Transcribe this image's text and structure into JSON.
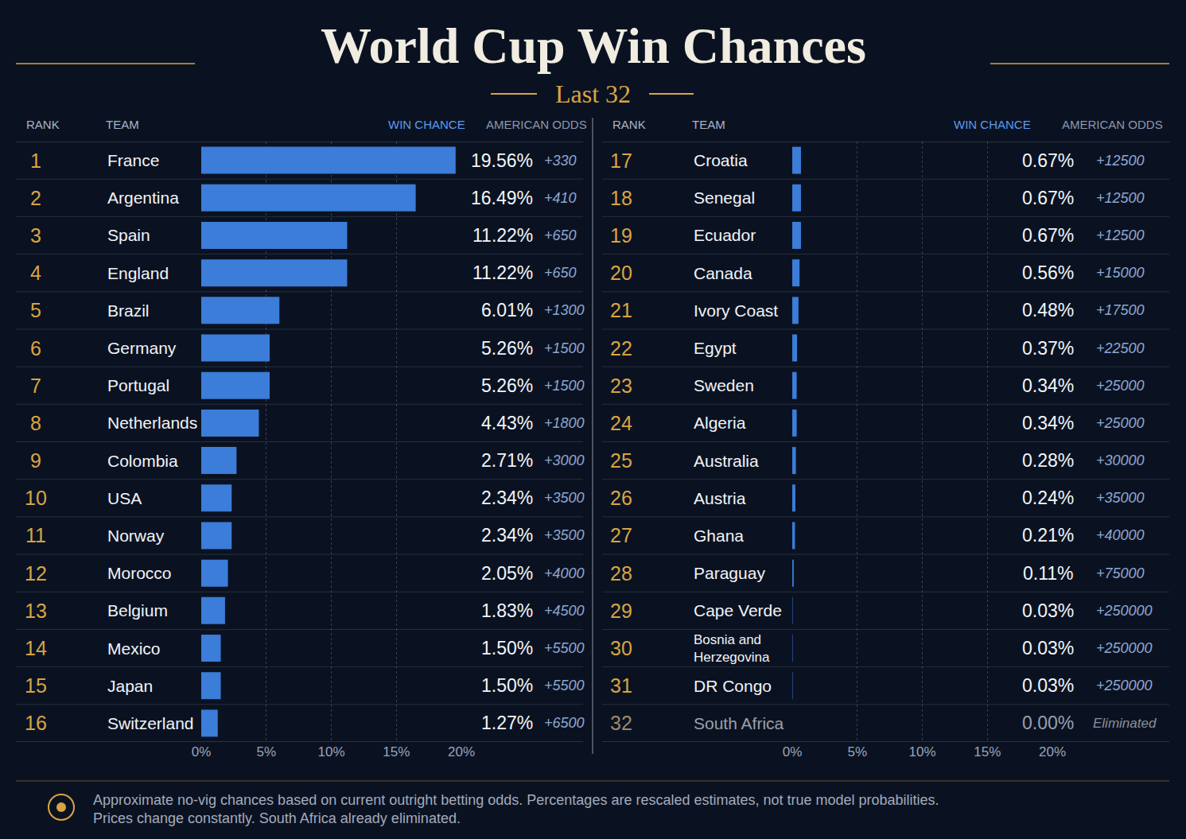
{
  "title": "World Cup Win Chances",
  "subtitle": "Last 32",
  "columns": [
    "RANK",
    "TEAM",
    "WIN CHANCE",
    "AMERICAN ODDS"
  ],
  "note": [
    "Approximate no-vig chances based on current outright betting odds. Percentages are rescaled estimates, not true model probabilities.",
    "Prices change constantly. South Africa already eliminated."
  ],
  "chart_data": [
    {
      "type": "bar",
      "orientation": "horizontal",
      "color": "#3b7dd8",
      "grid": true,
      "data_labels": true,
      "ranks": [
        1,
        2,
        3,
        4,
        5,
        6,
        7,
        8,
        9,
        10,
        11,
        12,
        13,
        14,
        15,
        16
      ],
      "categories": [
        "France",
        "Argentina",
        "Spain",
        "England",
        "Brazil",
        "Germany",
        "Portugal",
        "Netherlands",
        "Colombia",
        "USA",
        "Norway",
        "Morocco",
        "Belgium",
        "Mexico",
        "Japan",
        "Switzerland"
      ],
      "values": [
        19.56,
        16.49,
        11.22,
        11.22,
        6.01,
        5.26,
        5.26,
        4.43,
        2.71,
        2.34,
        2.34,
        2.05,
        1.83,
        1.5,
        1.5,
        1.27
      ],
      "value_labels": [
        "19.56%",
        "16.49%",
        "11.22%",
        "11.22%",
        "6.01%",
        "5.26%",
        "5.26%",
        "4.43%",
        "2.71%",
        "2.34%",
        "2.34%",
        "2.05%",
        "1.83%",
        "1.50%",
        "1.50%",
        "1.27%"
      ],
      "odds": [
        "+330",
        "+410",
        "+650",
        "+650",
        "+1300",
        "+1500",
        "+1500",
        "+1800",
        "+3000",
        "+3500",
        "+3500",
        "+4000",
        "+4500",
        "+5500",
        "+5500",
        "+6500"
      ],
      "xlim": [
        0,
        20
      ],
      "xticks": [
        {
          "value": 0,
          "label": "0%"
        },
        {
          "value": 5,
          "label": "5%"
        },
        {
          "value": 10,
          "label": "10%"
        },
        {
          "value": 15,
          "label": "15%"
        },
        {
          "value": 20,
          "label": "20%"
        }
      ]
    },
    {
      "type": "bar",
      "orientation": "horizontal",
      "color": "#3b7dd8",
      "grid": true,
      "data_labels": true,
      "ranks": [
        17,
        18,
        19,
        20,
        21,
        22,
        23,
        24,
        25,
        26,
        27,
        28,
        29,
        30,
        31,
        32
      ],
      "categories": [
        "Croatia",
        "Senegal",
        "Ecuador",
        "Canada",
        "Ivory Coast",
        "Egypt",
        "Sweden",
        "Algeria",
        "Australia",
        "Austria",
        "Ghana",
        "Paraguay",
        "Cape Verde",
        "Bosnia and Herzegovina",
        "DR Congo",
        "South Africa"
      ],
      "values": [
        0.67,
        0.67,
        0.67,
        0.56,
        0.48,
        0.37,
        0.34,
        0.34,
        0.28,
        0.24,
        0.21,
        0.11,
        0.03,
        0.03,
        0.03,
        0
      ],
      "value_labels": [
        "0.67%",
        "0.67%",
        "0.67%",
        "0.56%",
        "0.48%",
        "0.37%",
        "0.34%",
        "0.34%",
        "0.28%",
        "0.24%",
        "0.21%",
        "0.11%",
        "0.03%",
        "0.03%",
        "0.03%",
        "0.00%"
      ],
      "odds": [
        "+12500",
        "+12500",
        "+12500",
        "+15000",
        "+17500",
        "+22500",
        "+25000",
        "+25000",
        "+30000",
        "+35000",
        "+40000",
        "+75000",
        "+250000",
        "+250000",
        "+250000",
        "Eliminated"
      ],
      "xlim": [
        0,
        20
      ],
      "xticks": [
        {
          "value": 0,
          "label": "0%"
        },
        {
          "value": 5,
          "label": "5%"
        },
        {
          "value": 10,
          "label": "10%"
        },
        {
          "value": 15,
          "label": "15%"
        },
        {
          "value": 20,
          "label": "20%"
        }
      ]
    }
  ]
}
